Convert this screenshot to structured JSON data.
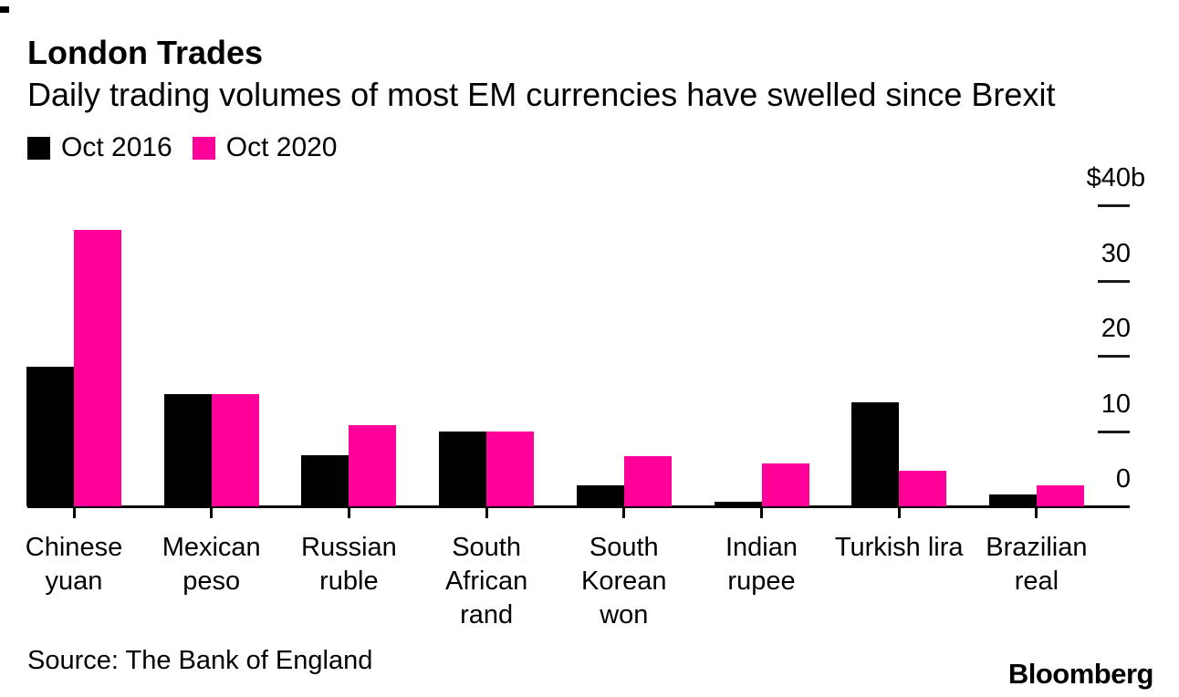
{
  "header": {
    "title": "London Trades",
    "subtitle": "Daily trading volumes of most EM currencies have swelled since Brexit"
  },
  "legend": [
    {
      "label": "Oct 2016",
      "color": "#000000"
    },
    {
      "label": "Oct 2020",
      "color": "#ff0099"
    }
  ],
  "footer": {
    "source": "Source: The Bank of England",
    "brand": "Bloomberg"
  },
  "colors": {
    "series_2016": "#000000",
    "series_2020": "#ff0099",
    "axis": "#000000",
    "text": "#000000",
    "background": "#ffffff"
  },
  "chart_data": {
    "type": "bar",
    "title": "London Trades",
    "subtitle": "Daily trading volumes of most EM currencies have swelled since Brexit",
    "categories": [
      "Chinese yuan",
      "Mexican peso",
      "Russian ruble",
      "South African rand",
      "South Korean won",
      "Indian rupee",
      "Turkish lira",
      "Brazilian real"
    ],
    "category_label_lines": [
      [
        "Chinese",
        "yuan"
      ],
      [
        "Mexican",
        "peso"
      ],
      [
        "Russian",
        "ruble"
      ],
      [
        "South",
        "African",
        "rand"
      ],
      [
        "South",
        "Korean",
        "won"
      ],
      [
        "Indian",
        "rupee"
      ],
      [
        "Turkish lira"
      ],
      [
        "Brazilian",
        "real"
      ]
    ],
    "series": [
      {
        "name": "Oct 2016",
        "color": "#000000",
        "values": [
          18.6,
          14.9,
          6.8,
          9.9,
          2.8,
          0.6,
          13.8,
          1.6
        ]
      },
      {
        "name": "Oct 2020",
        "color": "#ff0099",
        "values": [
          36.7,
          14.9,
          10.8,
          9.9,
          6.7,
          5.7,
          4.7,
          2.8
        ]
      }
    ],
    "unit": "$b",
    "xlabel": "",
    "ylabel": "",
    "ylim": [
      0,
      40
    ],
    "y_ticks": [
      {
        "value": 40,
        "prefix": "$",
        "num": "40",
        "suffix": "b",
        "label": "$40b"
      },
      {
        "value": 30,
        "prefix": "",
        "num": "30",
        "suffix": "",
        "label": "30"
      },
      {
        "value": 20,
        "prefix": "",
        "num": "20",
        "suffix": "",
        "label": "20"
      },
      {
        "value": 10,
        "prefix": "",
        "num": "10",
        "suffix": "",
        "label": "10"
      },
      {
        "value": 0,
        "prefix": "",
        "num": "0",
        "suffix": "",
        "label": "0"
      }
    ],
    "grid": false,
    "legend_position": "top-left",
    "axis_side": "right"
  }
}
